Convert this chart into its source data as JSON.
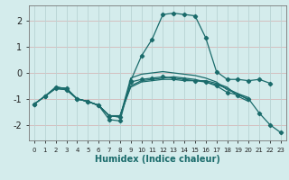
{
  "xlabel": "Humidex (Indice chaleur)",
  "bg_color": "#d4ecec",
  "grid_color_h": "#d4b8b8",
  "grid_color_v": "#b8d4d4",
  "line_color": "#1a6b6b",
  "xlim": [
    -0.5,
    23.5
  ],
  "ylim": [
    -2.6,
    2.6
  ],
  "xticks": [
    0,
    1,
    2,
    3,
    4,
    5,
    6,
    7,
    8,
    9,
    10,
    11,
    12,
    13,
    14,
    15,
    16,
    17,
    18,
    19,
    20,
    21,
    22,
    23
  ],
  "yticks": [
    -2,
    -1,
    0,
    1,
    2
  ],
  "lines": [
    {
      "x": [
        0,
        1,
        2,
        3,
        4,
        5,
        6,
        7,
        8,
        9,
        10,
        11,
        12,
        13,
        14,
        15,
        16,
        17,
        18,
        19,
        20,
        21,
        22
      ],
      "y": [
        -1.2,
        -0.9,
        -0.6,
        -0.65,
        -1.0,
        -1.1,
        -1.25,
        -1.8,
        -1.85,
        -0.3,
        0.65,
        1.3,
        2.25,
        2.3,
        2.25,
        2.2,
        1.35,
        0.05,
        -0.25,
        -0.25,
        -0.3,
        -0.25,
        -0.4
      ],
      "has_markers": true
    },
    {
      "x": [
        0,
        1,
        2,
        3,
        4,
        5,
        6,
        7,
        8,
        9,
        10,
        11,
        12,
        13,
        14,
        15,
        16,
        17,
        18,
        19,
        20
      ],
      "y": [
        -1.2,
        -0.9,
        -0.6,
        -0.65,
        -1.0,
        -1.1,
        -1.25,
        -1.65,
        -1.65,
        -0.55,
        -0.35,
        -0.3,
        -0.25,
        -0.25,
        -0.3,
        -0.3,
        -0.3,
        -0.4,
        -0.55,
        -0.9,
        -1.1
      ],
      "has_markers": false
    },
    {
      "x": [
        0,
        1,
        2,
        3,
        4,
        5,
        6,
        7,
        8,
        9,
        10,
        11,
        12,
        13,
        14,
        15,
        16,
        17,
        18,
        19,
        20,
        21,
        22,
        23
      ],
      "y": [
        -1.2,
        -0.9,
        -0.55,
        -0.6,
        -1.0,
        -1.1,
        -1.25,
        -1.65,
        -1.7,
        -0.35,
        -0.25,
        -0.2,
        -0.15,
        -0.2,
        -0.25,
        -0.3,
        -0.35,
        -0.5,
        -0.75,
        -0.85,
        -1.0,
        -1.55,
        -2.0,
        -2.3
      ],
      "has_markers": true
    },
    {
      "x": [
        0,
        1,
        2,
        3,
        4,
        5,
        6,
        7,
        8,
        9,
        10,
        11,
        12,
        13,
        14,
        15,
        16,
        17,
        18,
        19,
        20
      ],
      "y": [
        -1.2,
        -0.9,
        -0.55,
        -0.6,
        -1.0,
        -1.1,
        -1.25,
        -1.65,
        -1.7,
        -0.2,
        -0.05,
        -0.0,
        0.05,
        0.0,
        -0.05,
        -0.1,
        -0.2,
        -0.35,
        -0.65,
        -0.8,
        -0.95
      ],
      "has_markers": false
    },
    {
      "x": [
        2,
        3,
        4,
        5,
        6,
        7,
        8,
        9,
        10,
        11,
        12,
        13,
        14,
        15,
        16,
        17,
        18,
        19,
        20
      ],
      "y": [
        -0.55,
        -0.6,
        -1.0,
        -1.1,
        -1.25,
        -1.65,
        -1.65,
        -0.5,
        -0.3,
        -0.25,
        -0.2,
        -0.15,
        -0.2,
        -0.25,
        -0.35,
        -0.45,
        -0.6,
        -0.8,
        -1.05
      ],
      "has_markers": false
    }
  ]
}
